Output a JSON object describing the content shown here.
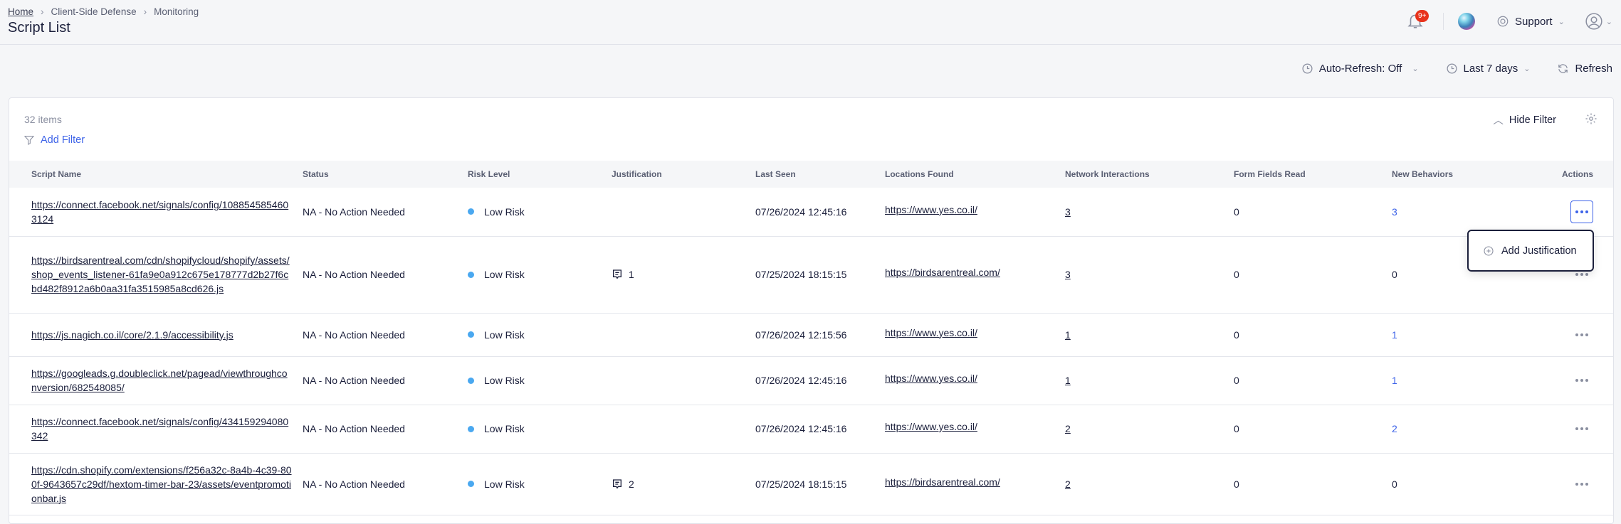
{
  "breadcrumb": {
    "home": "Home",
    "section": "Client-Side Defense",
    "page": "Monitoring"
  },
  "title": "Script List",
  "topbar": {
    "notification_badge": "9+",
    "support": "Support"
  },
  "toolbar": {
    "auto_refresh": "Auto-Refresh: Off",
    "range": "Last 7 days",
    "refresh": "Refresh"
  },
  "card": {
    "items_count": "32 items",
    "add_filter": "Add Filter",
    "hide_filter": "Hide Filter"
  },
  "columns": [
    "Script Name",
    "Status",
    "Risk Level",
    "Justification",
    "Last Seen",
    "Locations Found",
    "Network Interactions",
    "Form Fields Read",
    "New Behaviors",
    "Actions"
  ],
  "rows": [
    {
      "script": "https://connect.facebook.net/signals/config/1088545854603124",
      "status": "NA - No Action Needed",
      "risk": "Low Risk",
      "justification": "",
      "last_seen": "07/26/2024 12:45:16",
      "location": "https://www.yes.co.il/",
      "network": "3",
      "form_fields": "0",
      "new_behaviors": "3",
      "new_link": true
    },
    {
      "script": "https://birdsarentreal.com/cdn/shopifycloud/shopify/assets/shop_events_listener-61fa9e0a912c675e178777d2b27f6cbd482f8912a6b0aa31fa3515985a8cd626.js",
      "status": "NA - No Action Needed",
      "risk": "Low Risk",
      "justification": "1",
      "last_seen": "07/25/2024 18:15:15",
      "location": "https://birdsarentreal.com/",
      "network": "3",
      "form_fields": "0",
      "new_behaviors": "0",
      "new_link": false
    },
    {
      "script": "https://js.nagich.co.il/core/2.1.9/accessibility.js",
      "status": "NA - No Action Needed",
      "risk": "Low Risk",
      "justification": "",
      "last_seen": "07/26/2024 12:15:56",
      "location": "https://www.yes.co.il/",
      "network": "1",
      "form_fields": "0",
      "new_behaviors": "1",
      "new_link": true
    },
    {
      "script": "https://googleads.g.doubleclick.net/pagead/viewthroughconversion/682548085/",
      "status": "NA - No Action Needed",
      "risk": "Low Risk",
      "justification": "",
      "last_seen": "07/26/2024 12:45:16",
      "location": "https://www.yes.co.il/",
      "network": "1",
      "form_fields": "0",
      "new_behaviors": "1",
      "new_link": true
    },
    {
      "script": "https://connect.facebook.net/signals/config/434159294080342",
      "status": "NA - No Action Needed",
      "risk": "Low Risk",
      "justification": "",
      "last_seen": "07/26/2024 12:45:16",
      "location": "https://www.yes.co.il/",
      "network": "2",
      "form_fields": "0",
      "new_behaviors": "2",
      "new_link": true
    },
    {
      "script": "https://cdn.shopify.com/extensions/f256a32c-8a4b-4c39-800f-9643657c29df/hextom-timer-bar-23/assets/eventpromotionbar.js",
      "status": "NA - No Action Needed",
      "risk": "Low Risk",
      "justification": "2",
      "last_seen": "07/25/2024 18:15:15",
      "location": "https://birdsarentreal.com/",
      "network": "2",
      "form_fields": "0",
      "new_behaviors": "0",
      "new_link": false
    }
  ],
  "menu": {
    "add_justification": "Add Justification"
  },
  "colors": {
    "accent": "#3d63e8",
    "low_risk": "#4aa8f0",
    "badge": "#e8331c"
  }
}
